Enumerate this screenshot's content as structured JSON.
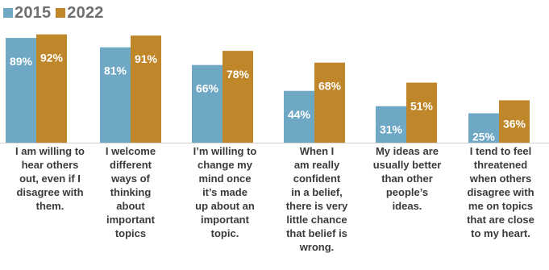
{
  "legend": [
    {
      "label": "2015",
      "color": "#6fa8c4"
    },
    {
      "label": "2022",
      "color": "#c0862a"
    }
  ],
  "chart_data": {
    "type": "bar",
    "categories": [
      "I am willing to hear others out, even if I disagree with them.",
      "I welcome different ways of thinking about important topics",
      "I’m willing to change my mind once it’s made up about an important topic.",
      "When I am really confident in a belief, there is very little chance that belief is wrong.",
      "My ideas are usually better than other people’s ideas.",
      "I tend to feel threatened when others disagree with me on topics that are close to my heart."
    ],
    "category_lines": [
      [
        "I am willing to",
        "hear others",
        "out, even if I",
        "disagree with",
        "them."
      ],
      [
        "I welcome",
        "different",
        "ways of",
        "thinking",
        "about",
        "important",
        "topics"
      ],
      [
        "I’m willing to",
        "change my",
        "mind once",
        "it’s made",
        "up about an",
        "important",
        "topic."
      ],
      [
        "When I",
        "am really",
        "confident",
        "in a belief,",
        "there is very",
        "little chance",
        "that belief is",
        "wrong."
      ],
      [
        "My ideas are",
        "usually better",
        "than other",
        "people’s",
        "ideas."
      ],
      [
        "I tend to feel",
        "threatened",
        "when others",
        "disagree with",
        "me on topics",
        "that are close",
        "to my heart."
      ]
    ],
    "series": [
      {
        "name": "2015",
        "values": [
          89,
          81,
          66,
          44,
          31,
          25
        ],
        "labels": [
          "89%",
          "81%",
          "66%",
          "44%",
          "31%",
          "25%"
        ],
        "color": "#6fa8c4"
      },
      {
        "name": "2022",
        "values": [
          92,
          91,
          78,
          68,
          51,
          36
        ],
        "labels": [
          "92%",
          "91%",
          "78%",
          "68%",
          "51%",
          "36%"
        ],
        "color": "#c0862a"
      }
    ],
    "ylim": [
      0,
      100
    ],
    "grid": false,
    "legend_position": "top-left",
    "baseline_color": "#d0d0d0"
  }
}
